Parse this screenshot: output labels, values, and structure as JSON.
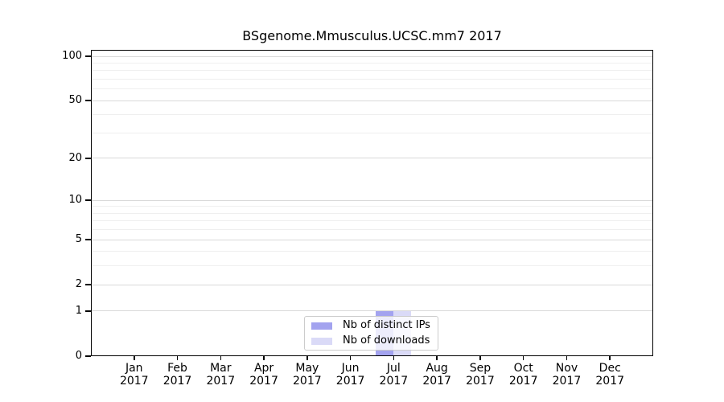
{
  "chart_data": {
    "type": "bar",
    "title": "BSgenome.Mmusculus.UCSC.mm7 2017",
    "categories": [
      "Jan 2017",
      "Feb 2017",
      "Mar 2017",
      "Apr 2017",
      "May 2017",
      "Jun 2017",
      "Jul 2017",
      "Aug 2017",
      "Sep 2017",
      "Oct 2017",
      "Nov 2017",
      "Dec 2017"
    ],
    "series": [
      {
        "name": "Nb of distinct IPs",
        "color": "#a3a3ef",
        "values": [
          0,
          0,
          0,
          0,
          0,
          0,
          1,
          0,
          0,
          0,
          0,
          0
        ]
      },
      {
        "name": "Nb of downloads",
        "color": "#dadaf7",
        "values": [
          0,
          0,
          0,
          0,
          0,
          0,
          1,
          0,
          0,
          0,
          0,
          0
        ]
      }
    ],
    "xlabel": "",
    "ylabel": "",
    "y_axis": {
      "scale": "log10(1+v)",
      "ticks": [
        0,
        1,
        2,
        5,
        10,
        20,
        50,
        100
      ],
      "minor_ticks": [
        3,
        4,
        6,
        7,
        8,
        9,
        30,
        40,
        60,
        70,
        80,
        90
      ],
      "ylim": [
        0,
        110
      ]
    },
    "grid": true,
    "legend_position": "bottom-center-inside"
  },
  "colors": {
    "grid_major": "#d9d9d9",
    "grid_minor": "#efefef",
    "axis": "#000000",
    "legend_border": "#cccccc",
    "legend_background": "rgba(255,255,255,0.8)",
    "background": "#ffffff",
    "text": "#000000"
  }
}
